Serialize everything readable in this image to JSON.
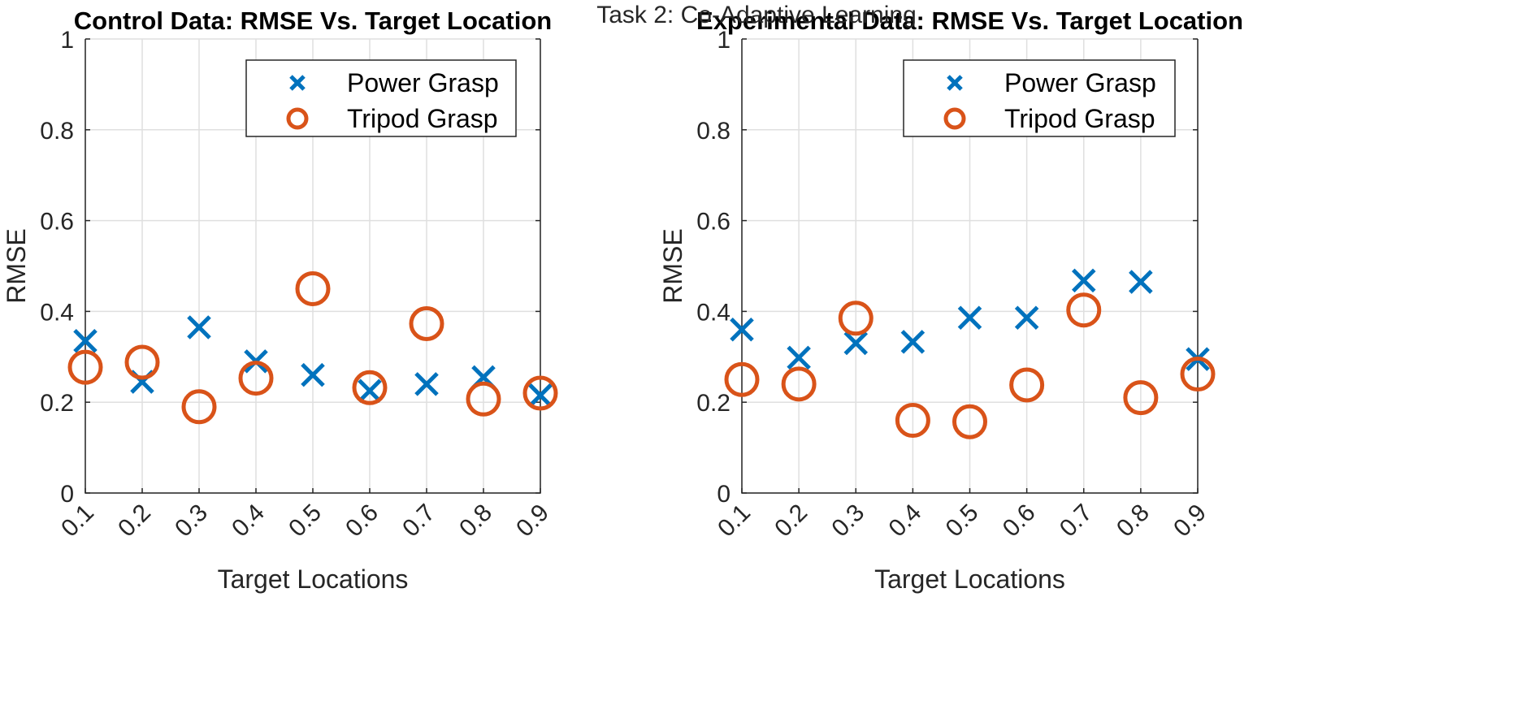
{
  "figure": {
    "suptitle": "Task 2: Co-Adaptive Learning"
  },
  "colors": {
    "power": "#0072BD",
    "tripod": "#D95319"
  },
  "chart_data": [
    {
      "type": "scatter",
      "title": "Control Data: RMSE Vs. Target Location",
      "xlabel": "Target Locations",
      "ylabel": "RMSE",
      "xlim": [
        0.1,
        0.9
      ],
      "ylim": [
        0,
        1
      ],
      "x": [
        0.1,
        0.2,
        0.3,
        0.4,
        0.5,
        0.6,
        0.7,
        0.8,
        0.9
      ],
      "x_tick_labels": [
        "0.1",
        "0.2",
        "0.3",
        "0.4",
        "0.5",
        "0.6",
        "0.7",
        "0.8",
        "0.9"
      ],
      "y_tick_labels": [
        "0",
        "0.2",
        "0.4",
        "0.6",
        "0.8",
        "1"
      ],
      "grid": true,
      "legend_position": "top-right",
      "series": [
        {
          "name": "Power Grasp",
          "marker": "x",
          "color": "#0072BD",
          "values": [
            0.335,
            0.245,
            0.365,
            0.29,
            0.26,
            0.225,
            0.24,
            0.255,
            0.215
          ]
        },
        {
          "name": "Tripod Grasp",
          "marker": "o",
          "color": "#D95319",
          "values": [
            0.277,
            0.288,
            0.19,
            0.253,
            0.45,
            0.232,
            0.373,
            0.207,
            0.22
          ]
        }
      ]
    },
    {
      "type": "scatter",
      "title": "Experimental Data: RMSE Vs. Target Location",
      "xlabel": "Target Locations",
      "ylabel": "RMSE",
      "xlim": [
        0.1,
        0.9
      ],
      "ylim": [
        0,
        1
      ],
      "x": [
        0.1,
        0.2,
        0.3,
        0.4,
        0.5,
        0.6,
        0.7,
        0.8,
        0.9
      ],
      "x_tick_labels": [
        "0.1",
        "0.2",
        "0.3",
        "0.4",
        "0.5",
        "0.6",
        "0.7",
        "0.8",
        "0.9"
      ],
      "y_tick_labels": [
        "0",
        "0.2",
        "0.4",
        "0.6",
        "0.8",
        "1"
      ],
      "grid": true,
      "legend_position": "top-right",
      "series": [
        {
          "name": "Power Grasp",
          "marker": "x",
          "color": "#0072BD",
          "values": [
            0.36,
            0.298,
            0.33,
            0.333,
            0.386,
            0.386,
            0.468,
            0.465,
            0.295
          ]
        },
        {
          "name": "Tripod Grasp",
          "marker": "o",
          "color": "#D95319",
          "values": [
            0.25,
            0.24,
            0.385,
            0.16,
            0.157,
            0.238,
            0.403,
            0.21,
            0.262
          ]
        }
      ]
    }
  ]
}
